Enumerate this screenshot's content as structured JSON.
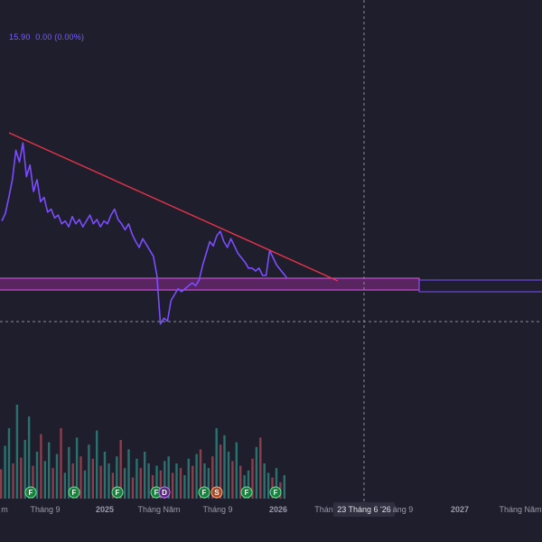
{
  "legend": {
    "price": "15.90",
    "change": "0.00 (0.00%)"
  },
  "colors": {
    "background": "#1e1e2c",
    "price_line": "#7c4dff",
    "trendline": "#e8334a",
    "zone_fill": "#8a2b8c",
    "zone_border": "#c34fd0",
    "crosshair": "#8a8a9a",
    "volume_up": "#2f8f86",
    "volume_down": "#b04a57",
    "axis_text": "#9a9aab",
    "axis_highlight_bg": "#2f2f3f",
    "event_badge": "#1a7f3c"
  },
  "chart_data": {
    "type": "line",
    "title": "",
    "x_axis_labels": [
      "m",
      "Tháng 9",
      "2025",
      "Tháng Năm",
      "Tháng 9",
      "2026",
      "Tháng",
      "23 Tháng 6 '26",
      "áng 9",
      "2027",
      "Tháng Năm"
    ],
    "crosshair_label": "23 Tháng 6 '26",
    "series": [
      {
        "values": [
          0.42,
          0.47,
          0.58,
          0.7,
          0.9,
          0.82,
          0.95,
          0.72,
          0.8,
          0.62,
          0.7,
          0.55,
          0.58,
          0.48,
          0.5,
          0.44,
          0.46,
          0.4,
          0.42,
          0.38,
          0.45,
          0.4,
          0.43,
          0.38,
          0.42,
          0.46,
          0.4,
          0.43,
          0.38,
          0.42,
          0.4,
          0.46,
          0.5,
          0.43,
          0.4,
          0.36,
          0.4,
          0.33,
          0.28,
          0.24,
          0.3,
          0.26,
          0.22,
          0.18,
          0.05,
          -0.28,
          -0.24,
          -0.26,
          -0.12,
          -0.08,
          -0.04,
          -0.06,
          -0.04,
          -0.02,
          0.0,
          -0.02,
          0.02,
          0.12,
          0.2,
          0.28,
          0.25,
          0.32,
          0.35,
          0.28,
          0.24,
          0.3,
          0.25,
          0.2,
          0.17,
          0.14,
          0.1,
          0.1,
          0.08,
          0.1,
          0.05,
          0.05,
          0.22,
          0.17,
          0.12,
          0.09,
          0.06,
          0.03
        ]
      }
    ],
    "volume": [
      0.25,
      0.45,
      0.6,
      0.3,
      0.8,
      0.35,
      0.5,
      0.7,
      0.28,
      0.4,
      0.55,
      0.32,
      0.48,
      0.26,
      0.38,
      0.6,
      0.22,
      0.44,
      0.3,
      0.52,
      0.36,
      0.24,
      0.46,
      0.34,
      0.58,
      0.28,
      0.4,
      0.3,
      0.22,
      0.36,
      0.5,
      0.26,
      0.42,
      0.18,
      0.34,
      0.26,
      0.4,
      0.3,
      0.2,
      0.28,
      0.24,
      0.32,
      0.36,
      0.22,
      0.3,
      0.26,
      0.2,
      0.34,
      0.28,
      0.38,
      0.42,
      0.3,
      0.26,
      0.36,
      0.6,
      0.46,
      0.54,
      0.4,
      0.32,
      0.48,
      0.28,
      0.2,
      0.24,
      0.34,
      0.44,
      0.52,
      0.3,
      0.22,
      0.18,
      0.26,
      0.14,
      0.2
    ],
    "events": [
      "F",
      "F",
      "F",
      "F",
      "D",
      "F",
      "S",
      "F",
      "F"
    ],
    "annotations": [
      "descending trendline",
      "horizontal support zone"
    ],
    "grid": false
  }
}
